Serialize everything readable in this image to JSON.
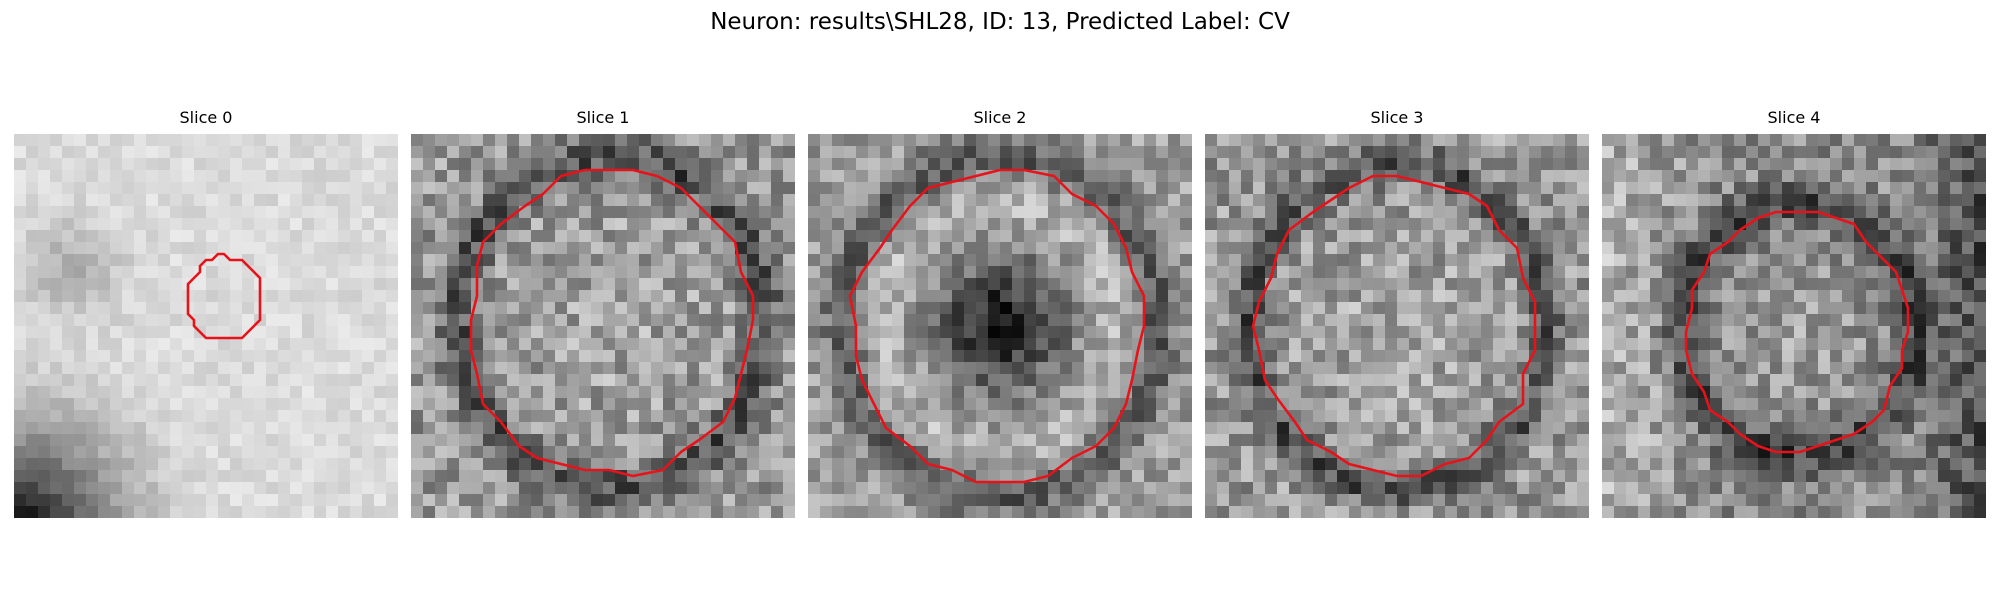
{
  "title": "Neuron: results\\SHL28, ID: 13, Predicted Label: CV",
  "panels": [
    {
      "title": "Slice 0",
      "seed": 11,
      "style": "slice0",
      "contour_rx": 0.098,
      "contour_ry": 0.11,
      "contour_cx": 0.55,
      "contour_cy": 0.43
    },
    {
      "title": "Slice 1",
      "seed": 23,
      "style": "ring",
      "contour_rx": 0.37,
      "contour_ry": 0.4,
      "contour_cx": 0.52,
      "contour_cy": 0.49
    },
    {
      "title": "Slice 2",
      "seed": 37,
      "style": "darkcenter",
      "contour_rx": 0.38,
      "contour_ry": 0.41,
      "contour_cx": 0.5,
      "contour_cy": 0.5
    },
    {
      "title": "Slice 3",
      "seed": 51,
      "style": "ring",
      "contour_rx": 0.36,
      "contour_ry": 0.39,
      "contour_cx": 0.5,
      "contour_cy": 0.5
    },
    {
      "title": "Slice 4",
      "seed": 67,
      "style": "slice4",
      "contour_rx": 0.29,
      "contour_ry": 0.31,
      "contour_cx": 0.51,
      "contour_cy": 0.51
    }
  ],
  "colors": {
    "contour": "#e8131a"
  }
}
